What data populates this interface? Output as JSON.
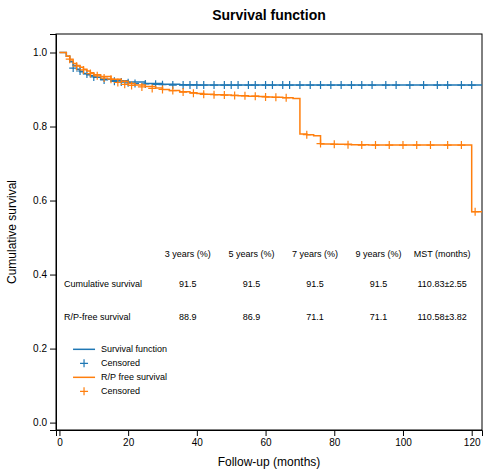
{
  "chart_data": {
    "type": "line",
    "title": "Survival function",
    "x_label": "Follow-up (months)",
    "y_label": "Cumulative survival",
    "xlim": [
      -1,
      123
    ],
    "ylim": [
      -0.02,
      1.05
    ],
    "xticks": [
      0,
      20,
      40,
      60,
      80,
      100,
      120
    ],
    "yticks": [
      {
        "value": 0.0,
        "label": "0.0"
      },
      0.2,
      0.4,
      0.6,
      0.8,
      {
        "value": 1.0,
        "label": "1.0"
      }
    ],
    "grid": false,
    "legend": "lower left",
    "series": [
      {
        "name": "Survival function",
        "type": "step",
        "color": "#1f77b4",
        "x": [
          0,
          2,
          3,
          4,
          5,
          6,
          7,
          8,
          9,
          10,
          12,
          15,
          20,
          25,
          30,
          35,
          40,
          50,
          60,
          70,
          80,
          90,
          100,
          110,
          120,
          123
        ],
        "values": [
          1.0,
          0.99,
          0.975,
          0.965,
          0.955,
          0.948,
          0.943,
          0.94,
          0.937,
          0.933,
          0.928,
          0.924,
          0.92,
          0.916,
          0.914,
          0.913,
          0.912,
          0.912,
          0.912,
          0.912,
          0.912,
          0.912,
          0.912,
          0.912,
          0.912,
          0.912
        ]
      },
      {
        "name": "Censored",
        "type": "scatter",
        "marker": "plus",
        "color": "#1f77b4",
        "x": [
          4,
          6,
          8,
          10,
          13,
          16,
          18,
          20,
          22,
          25,
          28,
          30,
          33,
          36,
          38,
          40,
          42,
          45,
          48,
          50,
          52,
          55,
          57,
          60,
          62,
          65,
          67,
          70,
          73,
          76,
          79,
          82,
          85,
          88,
          91,
          95,
          98,
          102,
          106,
          110,
          113,
          117,
          120
        ],
        "values": [
          0.958,
          0.95,
          0.942,
          0.934,
          0.926,
          0.922,
          0.92,
          0.918,
          0.916,
          0.915,
          0.914,
          0.913,
          0.912,
          0.912,
          0.912,
          0.912,
          0.912,
          0.912,
          0.912,
          0.912,
          0.912,
          0.912,
          0.912,
          0.912,
          0.912,
          0.912,
          0.912,
          0.912,
          0.912,
          0.912,
          0.912,
          0.912,
          0.912,
          0.912,
          0.912,
          0.912,
          0.912,
          0.912,
          0.912,
          0.912,
          0.912,
          0.912,
          0.912
        ]
      },
      {
        "name": "R/P free survival",
        "type": "step",
        "color": "#ff7f0e",
        "x": [
          0,
          2,
          3,
          4,
          5,
          6,
          7,
          8,
          9,
          10,
          12,
          15,
          18,
          20,
          22,
          25,
          28,
          30,
          32,
          35,
          38,
          40,
          42,
          45,
          48,
          50,
          52,
          55,
          58,
          60,
          62,
          65,
          68,
          70,
          72,
          74,
          76,
          80,
          85,
          90,
          95,
          100,
          105,
          110,
          115,
          120,
          123
        ],
        "values": [
          1.0,
          0.99,
          0.98,
          0.97,
          0.965,
          0.96,
          0.955,
          0.95,
          0.945,
          0.94,
          0.935,
          0.928,
          0.922,
          0.916,
          0.912,
          0.908,
          0.904,
          0.9,
          0.897,
          0.894,
          0.891,
          0.889,
          0.887,
          0.886,
          0.885,
          0.884,
          0.883,
          0.882,
          0.881,
          0.88,
          0.879,
          0.878,
          0.876,
          0.78,
          0.778,
          0.775,
          0.753,
          0.752,
          0.751,
          0.75,
          0.75,
          0.75,
          0.75,
          0.75,
          0.75,
          0.57,
          0.57
        ]
      },
      {
        "name": "Censored",
        "type": "scatter",
        "marker": "plus",
        "color": "#ff7f0e",
        "x": [
          3,
          5,
          7,
          9,
          11,
          13,
          15,
          17,
          19,
          21,
          24,
          27,
          30,
          33,
          36,
          39,
          42,
          45,
          48,
          51,
          54,
          57,
          60,
          63,
          66,
          72,
          76,
          80,
          84,
          88,
          92,
          96,
          100,
          104,
          108,
          113,
          117,
          121
        ],
        "values": [
          0.982,
          0.963,
          0.953,
          0.943,
          0.937,
          0.931,
          0.928,
          0.919,
          0.914,
          0.911,
          0.907,
          0.903,
          0.9,
          0.897,
          0.893,
          0.89,
          0.887,
          0.886,
          0.885,
          0.884,
          0.883,
          0.882,
          0.88,
          0.879,
          0.878,
          0.778,
          0.754,
          0.752,
          0.751,
          0.75,
          0.75,
          0.75,
          0.75,
          0.75,
          0.75,
          0.75,
          0.75,
          0.57
        ]
      }
    ],
    "table": {
      "columns": [
        "3 years (%)",
        "5 years (%)",
        "7 years (%)",
        "9 years (%)",
        "MST (months)"
      ],
      "rows": [
        {
          "label": "Cumulative survival",
          "values": [
            "91.5",
            "91.5",
            "91.5",
            "91.5",
            "110.83±2.55"
          ]
        },
        {
          "label": "R/P-free survival",
          "values": [
            "88.9",
            "86.9",
            "71.1",
            "71.1",
            "110.58±3.82"
          ]
        }
      ]
    }
  }
}
